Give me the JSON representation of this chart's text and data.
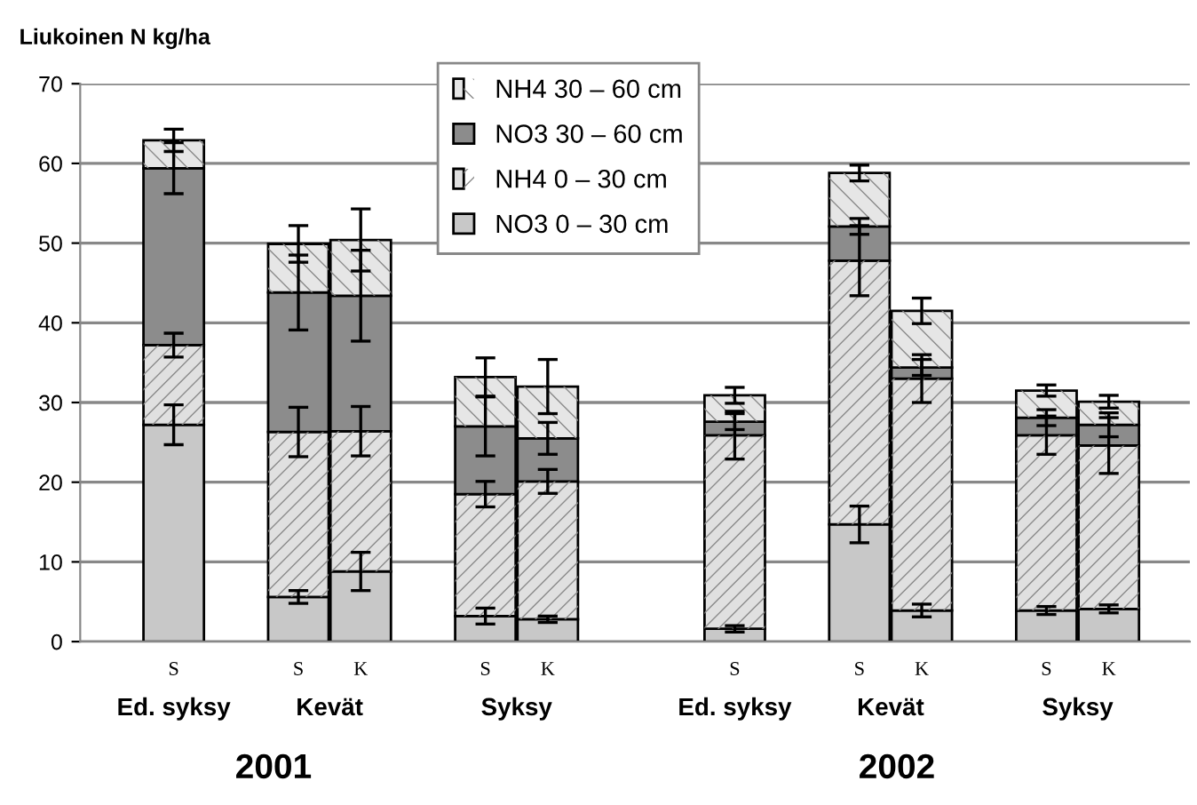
{
  "chart_data": {
    "type": "bar",
    "stacked": true,
    "ylabel": "Liukoinen N kg/ha",
    "categories": [
      "S",
      null,
      "S",
      "K",
      null,
      "S",
      "K",
      null,
      null,
      "S",
      null,
      "S",
      "K",
      null,
      "S",
      "K"
    ],
    "series": [
      {
        "name": "NO3 0 – 30 cm",
        "color": "#c8c8c8",
        "values": [
          27.2,
          null,
          5.6,
          8.8,
          null,
          3.2,
          2.8,
          null,
          null,
          1.6,
          null,
          14.7,
          3.9,
          null,
          3.9,
          4.1
        ],
        "errors": [
          2.5,
          null,
          0.8,
          2.4,
          null,
          1.0,
          0.4,
          null,
          null,
          0.4,
          null,
          2.3,
          0.8,
          null,
          0.5,
          0.5
        ]
      },
      {
        "name": "NH4 0 – 30 cm",
        "color": "#e0e0e0",
        "values": [
          10.0,
          null,
          20.7,
          17.6,
          null,
          15.3,
          17.3,
          null,
          null,
          24.3,
          null,
          33.1,
          29.1,
          null,
          22.0,
          20.5
        ],
        "errors": [
          1.5,
          null,
          3.1,
          3.1,
          null,
          1.6,
          1.5,
          null,
          null,
          3.0,
          null,
          4.4,
          3.0,
          null,
          2.4,
          3.5
        ]
      },
      {
        "name": "NO3 30 – 60 cm",
        "color": "#8c8c8c",
        "values": [
          22.2,
          null,
          17.5,
          17.0,
          null,
          8.5,
          5.4,
          null,
          null,
          1.7,
          null,
          4.3,
          1.4,
          null,
          2.2,
          2.6
        ],
        "errors": [
          3.2,
          null,
          4.7,
          5.7,
          null,
          3.7,
          2.0,
          null,
          null,
          1.0,
          null,
          1.0,
          1.0,
          null,
          1.0,
          1.5
        ]
      },
      {
        "name": "NH4 30 – 60 cm",
        "color": "#e6e6e6",
        "values": [
          3.5,
          null,
          6.1,
          7.0,
          null,
          6.2,
          6.5,
          null,
          null,
          3.3,
          null,
          6.7,
          7.1,
          null,
          3.4,
          2.9
        ],
        "errors": [
          1.4,
          null,
          2.3,
          3.9,
          null,
          2.4,
          3.4,
          null,
          null,
          1.0,
          null,
          1.0,
          1.6,
          null,
          0.7,
          0.8
        ]
      }
    ],
    "ylim": [
      0,
      70
    ],
    "yticks": [
      0,
      10,
      20,
      30,
      40,
      50,
      60,
      70
    ],
    "grid": "y",
    "legend": "top",
    "annotations": [
      "Ed. syksy",
      "Kevät",
      "Syksy",
      "Ed. syksy",
      "Kevät",
      "Syksy",
      "2001",
      "2002"
    ]
  }
}
